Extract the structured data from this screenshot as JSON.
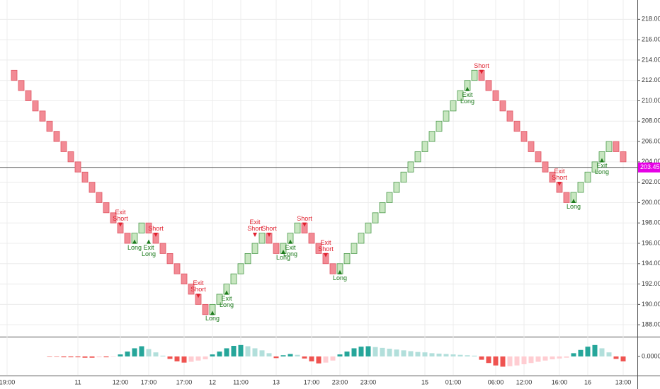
{
  "chart_data": {
    "type": "renko",
    "grid": true,
    "categories": [
      "19:00",
      null,
      null,
      null,
      null,
      null,
      null,
      null,
      null,
      null,
      "11",
      null,
      null,
      null,
      null,
      null,
      "12:00",
      null,
      null,
      null,
      "17:00",
      null,
      null,
      null,
      null,
      "17:00",
      null,
      null,
      null,
      "12",
      null,
      null,
      null,
      "11:00",
      null,
      null,
      null,
      null,
      "13",
      null,
      null,
      null,
      null,
      "17:00",
      null,
      null,
      null,
      "23:00",
      null,
      null,
      null,
      "23:00",
      null,
      null,
      null,
      null,
      null,
      null,
      null,
      "15",
      null,
      null,
      null,
      "01:00",
      null,
      null,
      null,
      null,
      null,
      "06:00",
      null,
      null,
      null,
      "12:00",
      null,
      null,
      null,
      null,
      "16:00",
      null,
      null,
      null,
      "16",
      null,
      null,
      null,
      null,
      "13:00"
    ],
    "series": [
      {
        "up_color": "#c8e6c0",
        "up_stroke": "#4c9a4c",
        "down_color": "#f28b95",
        "down_stroke": "#e05563",
        "values": [
          213,
          212,
          211,
          210,
          209,
          208,
          207,
          206,
          205,
          204,
          203,
          202,
          201,
          200,
          199,
          198,
          197,
          196,
          197,
          198,
          197,
          196,
          195,
          194,
          193,
          192,
          191,
          190,
          189,
          190,
          191,
          192,
          193,
          194,
          195,
          196,
          197,
          196,
          195,
          196,
          197,
          198,
          197,
          196,
          195,
          194,
          193,
          194,
          195,
          196,
          197,
          198,
          199,
          200,
          201,
          202,
          203,
          204,
          205,
          206,
          207,
          208,
          209,
          210,
          211,
          212,
          213,
          212,
          211,
          210,
          209,
          208,
          207,
          206,
          205,
          204,
          203,
          202,
          201,
          200,
          201,
          202,
          203,
          204,
          205,
          206,
          205,
          204
        ]
      }
    ],
    "ylim": [
      186.9,
      219.9
    ],
    "yticks": [
      {
        "value": 188,
        "label": "188.00"
      },
      {
        "value": 190,
        "label": "190.00"
      },
      {
        "value": 192,
        "label": "192.00"
      },
      {
        "value": 194,
        "label": "194.00"
      },
      {
        "value": 196,
        "label": "196.00"
      },
      {
        "value": 198,
        "label": "198.00"
      },
      {
        "value": 200,
        "label": "200.00"
      },
      {
        "value": 202,
        "label": "202.00"
      },
      {
        "value": 204,
        "label": "204.00"
      },
      {
        "value": 206,
        "label": "206.00"
      },
      {
        "value": 208,
        "label": "208.00"
      },
      {
        "value": 210,
        "label": "210.00"
      },
      {
        "value": 212,
        "label": "212.00"
      },
      {
        "value": 214,
        "label": "214.00"
      },
      {
        "value": 216,
        "label": "216.00"
      },
      {
        "value": 218,
        "label": "218.00"
      }
    ],
    "last_price": 203.45,
    "last_price_color": "#e600e6",
    "signals": [
      {
        "label": "Exit Short",
        "index": 16,
        "price": 197,
        "color": "#e0202e"
      },
      {
        "label": "Long",
        "index": 18,
        "price": 197,
        "color": "#1b7a1b"
      },
      {
        "label": "Exit Long",
        "index": 20,
        "price": 197,
        "color": "#1b7a1b"
      },
      {
        "label": "Short",
        "index": 21,
        "price": 196,
        "color": "#e0202e"
      },
      {
        "label": "Exit Short",
        "index": 27,
        "price": 190,
        "color": "#e0202e"
      },
      {
        "label": "Long",
        "index": 29,
        "price": 190,
        "color": "#1b7a1b"
      },
      {
        "label": "Exit Long",
        "index": 31,
        "price": 192,
        "color": "#1b7a1b"
      },
      {
        "label": "Exit Short",
        "index": 35,
        "price": 196,
        "color": "#e0202e"
      },
      {
        "label": "Short",
        "index": 37,
        "price": 196,
        "color": "#e0202e"
      },
      {
        "label": "Long",
        "index": 39,
        "price": 196,
        "color": "#1b7a1b"
      },
      {
        "label": "Exit Long",
        "index": 40,
        "price": 197,
        "color": "#1b7a1b"
      },
      {
        "label": "Short",
        "index": 42,
        "price": 197,
        "color": "#e0202e"
      },
      {
        "label": "Exit Short",
        "index": 45,
        "price": 194,
        "color": "#e0202e"
      },
      {
        "label": "Long",
        "index": 47,
        "price": 194,
        "color": "#1b7a1b"
      },
      {
        "label": "Exit Long",
        "index": 65,
        "price": 212,
        "color": "#1b7a1b"
      },
      {
        "label": "Short",
        "index": 67,
        "price": 212,
        "color": "#e0202e"
      },
      {
        "label": "Exit Short",
        "index": 78,
        "price": 201,
        "color": "#e0202e"
      },
      {
        "label": "Long",
        "index": 80,
        "price": 201,
        "color": "#1b7a1b"
      },
      {
        "label": "Exit Long",
        "index": 84,
        "price": 205,
        "color": "#1b7a1b"
      }
    ],
    "histogram": {
      "values": [
        0,
        0,
        0,
        0,
        0,
        0,
        -0.01,
        -0.01,
        -0.02,
        -0.02,
        -0.02,
        -0.03,
        -0.03,
        -0.02,
        -0.02,
        -0.01,
        0.05,
        0.12,
        0.2,
        0.25,
        0.18,
        0.1,
        0.02,
        -0.06,
        -0.12,
        -0.15,
        -0.13,
        -0.1,
        -0.07,
        0.05,
        0.12,
        0.2,
        0.26,
        0.28,
        0.25,
        0.2,
        0.15,
        0.08,
        -0.04,
        0.03,
        0.06,
        0.04,
        -0.05,
        -0.12,
        -0.17,
        -0.15,
        -0.1,
        0.05,
        0.12,
        0.2,
        0.24,
        0.25,
        0.23,
        0.21,
        0.19,
        0.17,
        0.15,
        0.13,
        0.11,
        0.1,
        0.08,
        0.07,
        0.06,
        0.05,
        0.04,
        0.03,
        0.02,
        -0.08,
        -0.16,
        -0.22,
        -0.25,
        -0.24,
        -0.22,
        -0.19,
        -0.16,
        -0.13,
        -0.1,
        -0.07,
        -0.05,
        -0.03,
        0.08,
        0.16,
        0.24,
        0.28,
        0.2,
        0.1,
        -0.06,
        -0.12
      ],
      "ylim": [
        -0.45,
        0.45
      ],
      "yticks": [
        {
          "value": 0,
          "label": "0.0000"
        }
      ],
      "colors": {
        "pos_rising": "#26a69a",
        "pos_falling": "#b2dfdb",
        "neg_falling": "#ef5350",
        "neg_rising": "#ffcdd2"
      }
    }
  }
}
